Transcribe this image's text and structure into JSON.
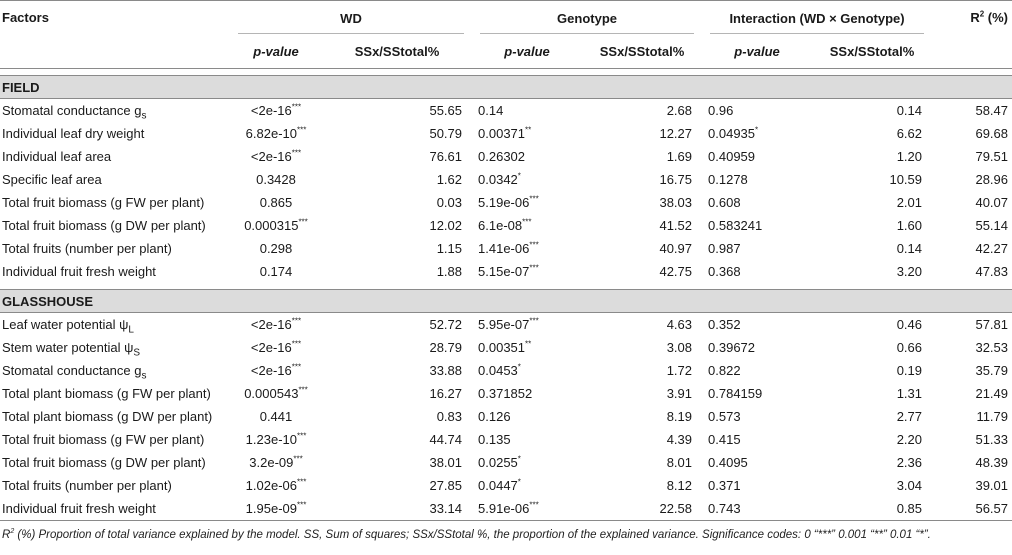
{
  "header": {
    "factors": "Factors",
    "groups": [
      "WD",
      "Genotype",
      "Interaction (WD × Genotype)"
    ],
    "r2_label": "R",
    "r2_sup": "2",
    "r2_unit": " (%)",
    "pvalue_italic": "p",
    "pvalue_rest": "-value",
    "ss_label": "SSx/SStotal%"
  },
  "sections": [
    {
      "title": "FIELD",
      "rows": [
        {
          "factor": "Stomatal conductance g",
          "factor_sub": "s",
          "wd_p": "<2e-16",
          "wd_sig": "***",
          "wd_ss": "55.65",
          "g_p": "0.14",
          "g_sig": "",
          "g_ss": "2.68",
          "i_p": "0.96",
          "i_sig": "",
          "i_ss": "0.14",
          "r2": "58.47"
        },
        {
          "factor": "Individual leaf dry weight",
          "factor_sub": "",
          "wd_p": "6.82e-10",
          "wd_sig": "***",
          "wd_ss": "50.79",
          "g_p": "0.00371",
          "g_sig": "**",
          "g_ss": "12.27",
          "i_p": "0.04935",
          "i_sig": "*",
          "i_ss": "6.62",
          "r2": "69.68"
        },
        {
          "factor": "Individual leaf area",
          "factor_sub": "",
          "wd_p": "<2e-16",
          "wd_sig": "***",
          "wd_ss": "76.61",
          "g_p": "0.26302",
          "g_sig": "",
          "g_ss": "1.69",
          "i_p": "0.40959",
          "i_sig": "",
          "i_ss": "1.20",
          "r2": "79.51"
        },
        {
          "factor": "Specific leaf area",
          "factor_sub": "",
          "wd_p": "0.3428",
          "wd_sig": "",
          "wd_ss": "1.62",
          "g_p": "0.0342",
          "g_sig": "*",
          "g_ss": "16.75",
          "i_p": "0.1278",
          "i_sig": "",
          "i_ss": "10.59",
          "r2": "28.96"
        },
        {
          "factor": "Total fruit biomass (g FW per plant)",
          "factor_sub": "",
          "wd_p": "0.865",
          "wd_sig": "",
          "wd_ss": "0.03",
          "g_p": "5.19e-06",
          "g_sig": "***",
          "g_ss": "38.03",
          "i_p": "0.608",
          "i_sig": "",
          "i_ss": "2.01",
          "r2": "40.07"
        },
        {
          "factor": "Total fruit biomass (g DW per plant)",
          "factor_sub": "",
          "wd_p": "0.000315",
          "wd_sig": "***",
          "wd_ss": "12.02",
          "g_p": "6.1e-08",
          "g_sig": "***",
          "g_ss": "41.52",
          "i_p": "0.583241",
          "i_sig": "",
          "i_ss": "1.60",
          "r2": "55.14"
        },
        {
          "factor": "Total fruits (number per plant)",
          "factor_sub": "",
          "wd_p": "0.298",
          "wd_sig": "",
          "wd_ss": "1.15",
          "g_p": "1.41e-06",
          "g_sig": "***",
          "g_ss": "40.97",
          "i_p": "0.987",
          "i_sig": "",
          "i_ss": "0.14",
          "r2": "42.27"
        },
        {
          "factor": "Individual fruit fresh weight",
          "factor_sub": "",
          "wd_p": "0.174",
          "wd_sig": "",
          "wd_ss": "1.88",
          "g_p": "5.15e-07",
          "g_sig": "***",
          "g_ss": "42.75",
          "i_p": "0.368",
          "i_sig": "",
          "i_ss": "3.20",
          "r2": "47.83"
        }
      ]
    },
    {
      "title": "GLASSHOUSE",
      "rows": [
        {
          "factor": "Leaf water potential ψ",
          "factor_sub": "L",
          "wd_p": "<2e-16",
          "wd_sig": "***",
          "wd_ss": "52.72",
          "g_p": "5.95e-07",
          "g_sig": "***",
          "g_ss": "4.63",
          "i_p": "0.352",
          "i_sig": "",
          "i_ss": "0.46",
          "r2": "57.81"
        },
        {
          "factor": "Stem water potential ψ",
          "factor_sub": "S",
          "wd_p": "<2e-16",
          "wd_sig": "***",
          "wd_ss": "28.79",
          "g_p": "0.00351",
          "g_sig": "**",
          "g_ss": "3.08",
          "i_p": "0.39672",
          "i_sig": "",
          "i_ss": "0.66",
          "r2": "32.53"
        },
        {
          "factor": "Stomatal conductance g",
          "factor_sub": "s",
          "wd_p": "<2e-16",
          "wd_sig": "***",
          "wd_ss": "33.88",
          "g_p": "0.0453",
          "g_sig": "*",
          "g_ss": "1.72",
          "i_p": "0.822",
          "i_sig": "",
          "i_ss": "0.19",
          "r2": "35.79"
        },
        {
          "factor": "Total plant biomass (g FW per plant)",
          "factor_sub": "",
          "wd_p": "0.000543",
          "wd_sig": "***",
          "wd_ss": "16.27",
          "g_p": "0.371852",
          "g_sig": "",
          "g_ss": "3.91",
          "i_p": "0.784159",
          "i_sig": "",
          "i_ss": "1.31",
          "r2": "21.49"
        },
        {
          "factor": "Total plant biomass (g DW per plant)",
          "factor_sub": "",
          "wd_p": "0.441",
          "wd_sig": "",
          "wd_ss": "0.83",
          "g_p": "0.126",
          "g_sig": "",
          "g_ss": "8.19",
          "i_p": "0.573",
          "i_sig": "",
          "i_ss": "2.77",
          "r2": "11.79"
        },
        {
          "factor": "Total fruit biomass (g FW per plant)",
          "factor_sub": "",
          "wd_p": "1.23e-10",
          "wd_sig": "***",
          "wd_ss": "44.74",
          "g_p": "0.135",
          "g_sig": "",
          "g_ss": "4.39",
          "i_p": "0.415",
          "i_sig": "",
          "i_ss": "2.20",
          "r2": "51.33"
        },
        {
          "factor": "Total fruit biomass (g DW per plant)",
          "factor_sub": "",
          "wd_p": "3.2e-09",
          "wd_sig": "***",
          "wd_ss": "38.01",
          "g_p": "0.0255",
          "g_sig": "*",
          "g_ss": "8.01",
          "i_p": "0.4095",
          "i_sig": "",
          "i_ss": "2.36",
          "r2": "48.39"
        },
        {
          "factor": "Total fruits (number per plant)",
          "factor_sub": "",
          "wd_p": "1.02e-06",
          "wd_sig": "***",
          "wd_ss": "27.85",
          "g_p": "0.0447",
          "g_sig": "*",
          "g_ss": "8.12",
          "i_p": "0.371",
          "i_sig": "",
          "i_ss": "3.04",
          "r2": "39.01"
        },
        {
          "factor": "Individual fruit fresh weight",
          "factor_sub": "",
          "wd_p": "1.95e-09",
          "wd_sig": "***",
          "wd_ss": "33.14",
          "g_p": "5.91e-06",
          "g_sig": "***",
          "g_ss": "22.58",
          "i_p": "0.743",
          "i_sig": "",
          "i_ss": "0.85",
          "r2": "56.57"
        }
      ]
    }
  ],
  "footnote": {
    "r": "R",
    "sup": "2",
    "text": " (%) Proportion of total variance explained by the model. SS, Sum of squares; SSx/SStotal %, the proportion of the explained variance. Significance codes: 0 “***” 0.001 “**” 0.01 “*”."
  }
}
